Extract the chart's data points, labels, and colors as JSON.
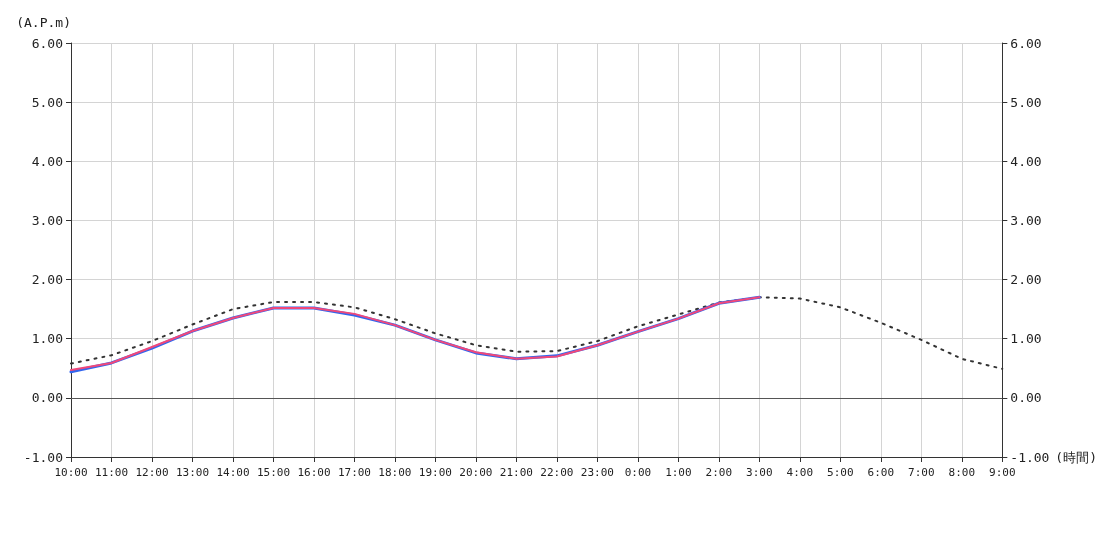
{
  "chart_data": {
    "type": "line",
    "ylabel": "(A.P.m)",
    "xlabel": "(時間)",
    "categories": [
      "10:00",
      "11:00",
      "12:00",
      "13:00",
      "14:00",
      "15:00",
      "16:00",
      "17:00",
      "18:00",
      "19:00",
      "20:00",
      "21:00",
      "22:00",
      "23:00",
      "0:00",
      "1:00",
      "2:00",
      "3:00",
      "4:00",
      "5:00",
      "6:00",
      "7:00",
      "8:00",
      "9:00"
    ],
    "series": [
      {
        "color": "#333333",
        "line_style": "dotted",
        "values": [
          0.58,
          0.72,
          0.96,
          1.24,
          1.5,
          1.62,
          1.62,
          1.53,
          1.33,
          1.09,
          0.89,
          0.78,
          0.79,
          0.96,
          1.21,
          1.41,
          1.61,
          1.7,
          1.68,
          1.53,
          1.27,
          0.98,
          0.66,
          0.49
        ]
      },
      {
        "color": "#3366ee",
        "line_style": "solid",
        "values": [
          0.44,
          0.59,
          0.84,
          1.13,
          1.35,
          1.52,
          1.52,
          1.4,
          1.23,
          0.98,
          0.76,
          0.66,
          0.71,
          0.89,
          1.12,
          1.34,
          1.6,
          1.7,
          null,
          null,
          null,
          null,
          null,
          null
        ]
      },
      {
        "color": "#f0487a",
        "line_style": "solid",
        "values": [
          0.47,
          0.59,
          0.86,
          1.13,
          1.35,
          1.52,
          1.52,
          1.42,
          1.23,
          0.98,
          0.77,
          0.66,
          0.7,
          0.89,
          1.12,
          1.34,
          1.6,
          1.7,
          null,
          null,
          null,
          null,
          null,
          null
        ]
      }
    ],
    "ylim": [
      -1,
      6
    ],
    "yticks": [
      {
        "value": -1,
        "label": "-1.00"
      },
      {
        "value": 0,
        "label": "0.00"
      },
      {
        "value": 1,
        "label": "1.00"
      },
      {
        "value": 2,
        "label": "2.00"
      },
      {
        "value": 3,
        "label": "3.00"
      },
      {
        "value": 4,
        "label": "4.00"
      },
      {
        "value": 5,
        "label": "5.00"
      },
      {
        "value": 6,
        "label": "6.00"
      }
    ],
    "y2lim": [
      -1,
      6
    ],
    "y2ticks": [
      {
        "value": -1,
        "label": "-1.00"
      },
      {
        "value": 0,
        "label": "0.00"
      },
      {
        "value": 1,
        "label": "1.00"
      },
      {
        "value": 2,
        "label": "2.00"
      },
      {
        "value": 3,
        "label": "3.00"
      },
      {
        "value": 4,
        "label": "4.00"
      },
      {
        "value": 5,
        "label": "5.00"
      },
      {
        "value": 6,
        "label": "6.00"
      }
    ],
    "ref_lines": [
      {
        "axis": "y",
        "value": 0,
        "color": "#555555"
      }
    ],
    "grid": true,
    "marker": "none",
    "legend": false
  }
}
